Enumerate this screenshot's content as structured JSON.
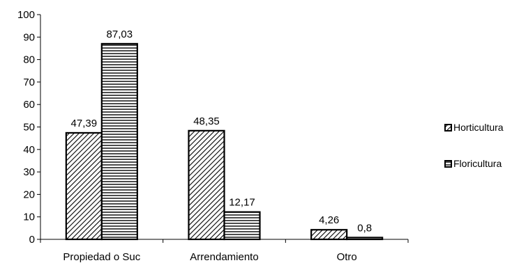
{
  "chart_data": {
    "type": "bar",
    "categories": [
      "Propiedad o Suc",
      "Arrendamiento",
      "Otro"
    ],
    "series": [
      {
        "name": "Horticultura",
        "values": [
          47.39,
          48.35,
          4.26
        ],
        "labels": [
          "47,39",
          "48,35",
          "4,26"
        ],
        "pattern": "diagonal-hatch"
      },
      {
        "name": "Floricultura",
        "values": [
          87.03,
          12.17,
          0.8
        ],
        "labels": [
          "87,03",
          "12,17",
          "0,8"
        ],
        "pattern": "horizontal-lines"
      }
    ],
    "ylim": [
      0,
      100
    ],
    "yticks": [
      0,
      10,
      20,
      30,
      40,
      50,
      60,
      70,
      80,
      90,
      100
    ],
    "title": "",
    "xlabel": "",
    "ylabel": "",
    "grid": false,
    "legend_position": "right"
  }
}
